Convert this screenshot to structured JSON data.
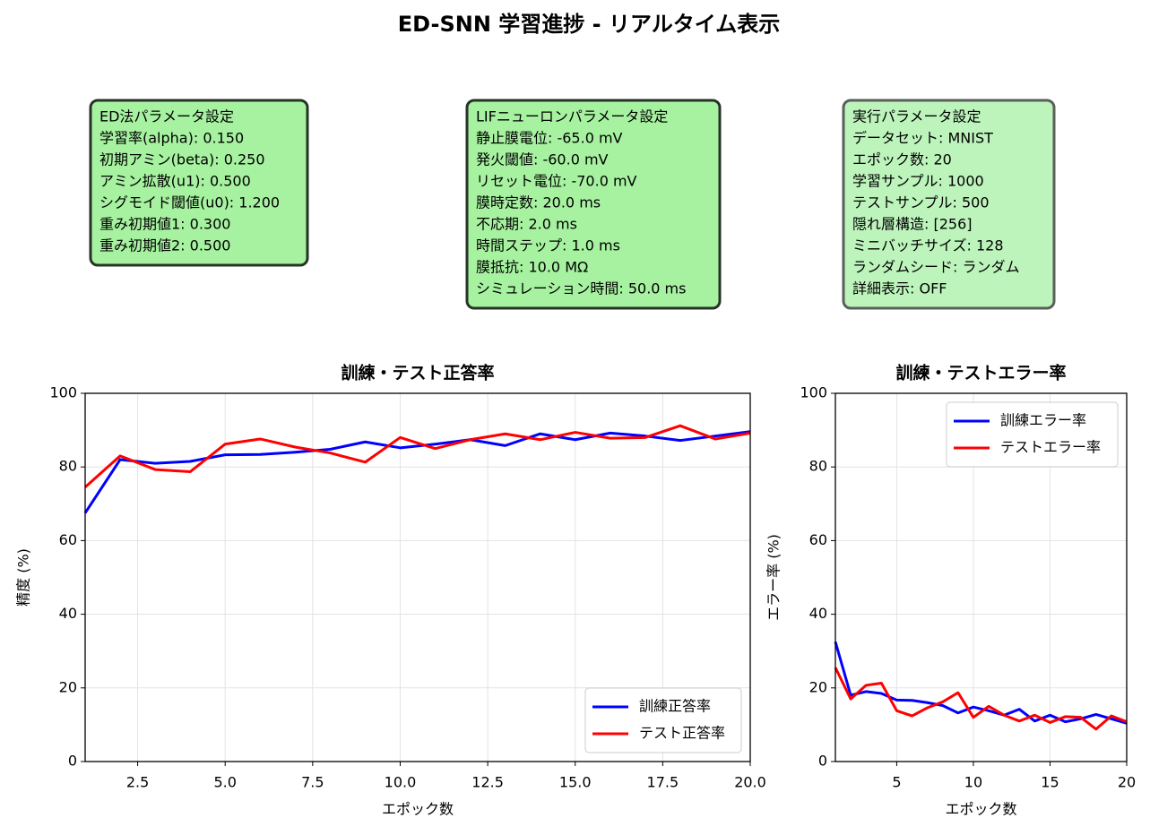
{
  "title": "ED-SNN 学習進捗 - リアルタイム表示",
  "boxes": [
    {
      "title": "ED法パラメータ設定",
      "lines": [
        "学習率(alpha): 0.150",
        "初期アミン(beta): 0.250",
        "アミン拡散(u1): 0.500",
        "シグモイド閾値(u0): 1.200",
        "重み初期値1: 0.300",
        "重み初期値2: 0.500"
      ],
      "color": "#a6f2a0",
      "border": "#263326"
    },
    {
      "title": "LIFニューロンパラメータ設定",
      "lines": [
        "静止膜電位: -65.0 mV",
        "発火閾値: -60.0 mV",
        "リセット電位: -70.0 mV",
        "膜時定数: 20.0 ms",
        "不応期: 2.0 ms",
        "時間ステップ: 1.0 ms",
        "膜抵抗: 10.0 MΩ",
        "シミュレーション時間: 50.0 ms"
      ],
      "color": "#a6f2a0",
      "border": "#263326"
    },
    {
      "title": "実行パラメータ設定",
      "lines": [
        "データセット: MNIST",
        "エポック数: 20",
        "学習サンプル: 1000",
        "テストサンプル: 500",
        "隠れ層構造: [256]",
        "ミニバッチサイズ: 128",
        "ランダムシード: ランダム",
        "詳細表示: OFF"
      ],
      "color": "#bdf4bc",
      "border": "#5a5f5a"
    }
  ],
  "chart_data": [
    {
      "type": "line",
      "title": "訓練・テスト正答率",
      "x_label": "エポック数",
      "y_label": "精度 (%)",
      "x": [
        1,
        2,
        3,
        4,
        5,
        6,
        7,
        8,
        9,
        10,
        11,
        12,
        13,
        14,
        15,
        16,
        17,
        18,
        19,
        20
      ],
      "series": [
        {
          "name": "訓練正答率",
          "color": "#0000ff",
          "values": [
            67.5,
            82,
            81,
            81.5,
            83.3,
            83.4,
            84,
            84.8,
            86.8,
            85.2,
            86.2,
            87.4,
            85.8,
            89,
            87.4,
            89.2,
            88.4,
            87.2,
            88.4,
            89.6
          ]
        },
        {
          "name": "テスト正答率",
          "color": "#ff0000",
          "values": [
            74.5,
            83,
            79.3,
            78.7,
            86.2,
            87.6,
            85.4,
            83.8,
            81.3,
            88,
            85,
            87.4,
            89,
            87.4,
            89.4,
            87.8,
            88,
            91.2,
            87.6,
            89.2
          ]
        }
      ],
      "xlim": [
        1,
        20
      ],
      "xticks": [
        2.5,
        {
          "value": 5,
          "label": "5.0"
        },
        7.5,
        {
          "value": 10,
          "label": "10.0"
        },
        12.5,
        {
          "value": 15,
          "label": "15.0"
        },
        17.5,
        {
          "value": 20,
          "label": "20.0"
        }
      ],
      "ylim": [
        0,
        100
      ],
      "yticks": [
        0,
        20,
        40,
        60,
        80,
        100
      ],
      "grid": true,
      "legend": "lower right"
    },
    {
      "type": "line",
      "title": "訓練・テストエラー率",
      "x_label": "エポック数",
      "y_label": "エラー率 (%)",
      "x": [
        1,
        2,
        3,
        4,
        5,
        6,
        7,
        8,
        9,
        10,
        11,
        12,
        13,
        14,
        15,
        16,
        17,
        18,
        19,
        20
      ],
      "series": [
        {
          "name": "訓練エラー率",
          "color": "#0000ff",
          "values": [
            32.5,
            18,
            19,
            18.5,
            16.7,
            16.6,
            16,
            15.2,
            13.2,
            14.8,
            13.8,
            12.6,
            14.2,
            11,
            12.6,
            10.8,
            11.6,
            12.8,
            11.6,
            10.4
          ]
        },
        {
          "name": "テストエラー率",
          "color": "#ff0000",
          "values": [
            25.5,
            17,
            20.7,
            21.3,
            13.8,
            12.4,
            14.6,
            16.2,
            18.7,
            12,
            15,
            12.6,
            11,
            12.6,
            10.6,
            12.2,
            12,
            8.8,
            12.4,
            10.8
          ]
        }
      ],
      "xlim": [
        1,
        20
      ],
      "xticks": [
        5,
        10,
        15,
        20
      ],
      "ylim": [
        0,
        100
      ],
      "yticks": [
        0,
        20,
        40,
        60,
        80,
        100
      ],
      "grid": true,
      "legend": "upper right"
    }
  ]
}
